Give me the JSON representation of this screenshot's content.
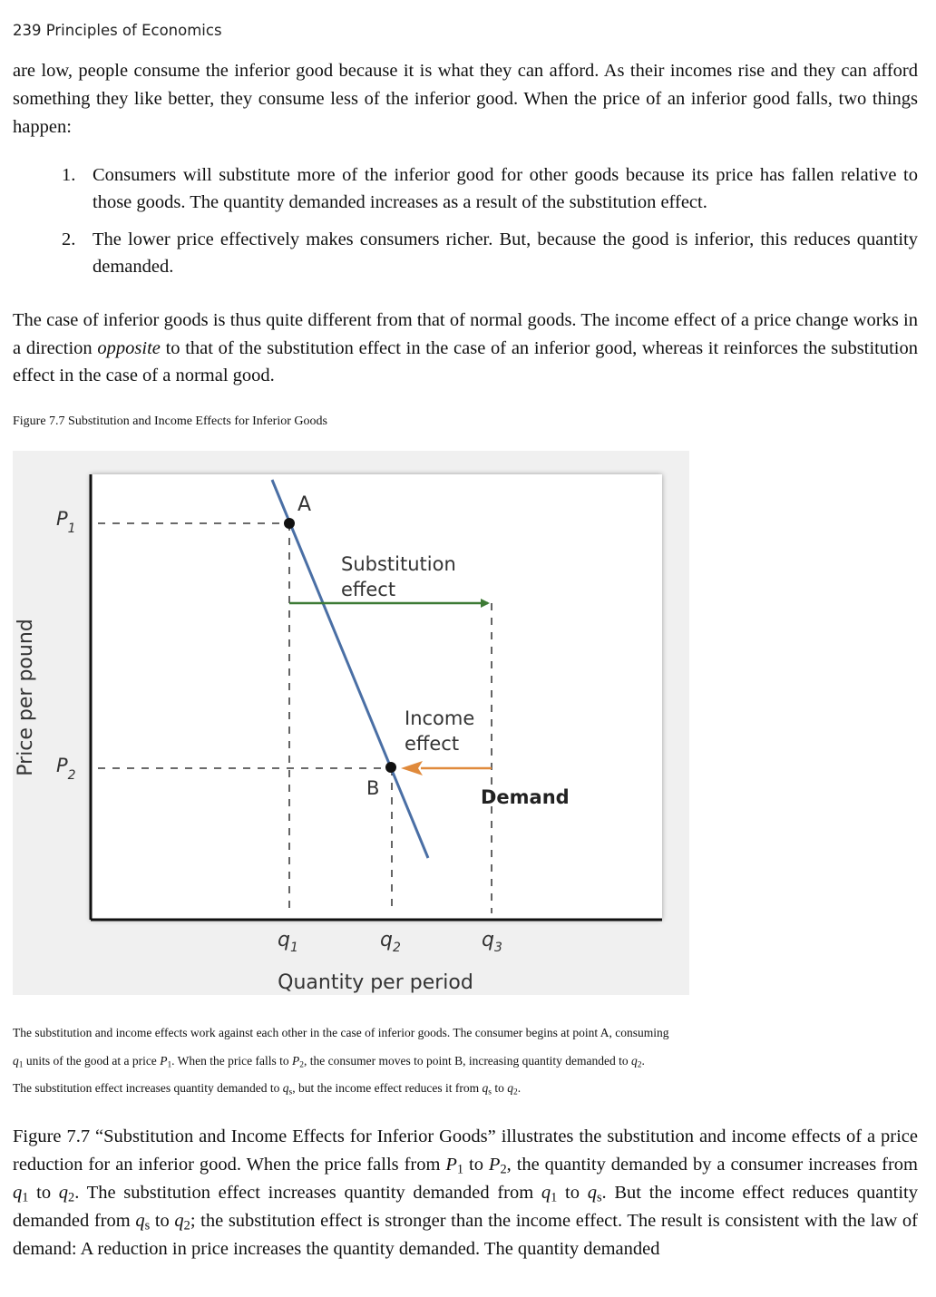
{
  "header": {
    "page_label": "239  Principles of Economics"
  },
  "para1": "are low, people consume the inferior good because it is what they can afford. As their incomes rise and they can afford something they like better, they consume less of the inferior good. When the price of an inferior good falls, two things happen:",
  "list": [
    {
      "num": "1.",
      "text": "Consumers will substitute more of the inferior good for other goods because its price has fallen relative to those goods. The quantity demanded increases as a result of the substitution effect."
    },
    {
      "num": "2.",
      "text": "The lower price effectively makes consumers richer. But, because the good is inferior, this reduces quantity demanded."
    }
  ],
  "para2": {
    "a": "The case of inferior goods is thus quite different from that of normal goods. The income effect of a price change works in a direction ",
    "em": "opposite",
    "b": " to that of the substitution effect in the case of an inferior good, whereas it reinforces the substitution effect in the case of a normal good."
  },
  "figure": {
    "title": "Figure 7.7 Substitution and Income Effects for Inferior Goods",
    "ylabel": "Price per pound",
    "xlabel": "Quantity per period",
    "p1": "P",
    "p1_sub": "1",
    "p2": "P",
    "p2_sub": "2",
    "q1": "q",
    "q1_sub": "1",
    "q2": "q",
    "q2_sub": "2",
    "q3": "q",
    "q3_sub": "3",
    "point_a": "A",
    "point_b": "B",
    "subst_line1": "Substitution",
    "subst_line2": "effect",
    "income_line1": "Income",
    "income_line2": "effect",
    "demand_label": "Demand",
    "colors": {
      "demand": "#4a6fa5",
      "substitution": "#3d7a35",
      "income": "#e08a3c"
    }
  },
  "caption": {
    "l1": "The substitution and income effects work against each other in the case of inferior goods. The consumer begins at point A, consuming",
    "l2_a": "q",
    "l2_a_sub": "1",
    "l2_b": " units of the good at a price ",
    "l2_c": "P",
    "l2_c_sub": "1",
    "l2_d": ". When the price falls to ",
    "l2_e": "P",
    "l2_e_sub": "2",
    "l2_f": ", the consumer moves to point B, increasing quantity demanded to ",
    "l2_g": "q",
    "l2_g_sub": "2",
    "l2_h": ".",
    "l3_a": "The substitution effect increases quantity demanded to ",
    "l3_b": "q",
    "l3_b_sub": "s",
    "l3_c": ", but the income effect reduces it from ",
    "l3_d": "q",
    "l3_d_sub": "s",
    "l3_e": " to ",
    "l3_f": "q",
    "l3_f_sub": "2",
    "l3_g": "."
  },
  "para3": {
    "t1": "Figure 7.7 “Substitution and Income Effects for Inferior Goods” illustrates the substitution and income effects of a price reduction for an inferior good. When the price falls from ",
    "P1": "P",
    "P1_sub": "1",
    "t2": " to ",
    "P2": "P",
    "P2_sub": "2",
    "t3": ", the quantity demanded by a consumer increases from ",
    "q1": "q",
    "q1_sub": "1",
    "t4": " to ",
    "q2": "q",
    "q2_sub": "2",
    "t5": ". The substitution effect increases quantity demanded from ",
    "q1b": "q",
    "q1b_sub": "1",
    "t6": " to ",
    "qs": "q",
    "qs_sub": "s",
    "t7": ". But the income effect reduces quantity demanded from ",
    "qs2": "q",
    "qs2_sub": "s",
    "t8": " to ",
    "q2b": "q",
    "q2b_sub": "2",
    "t9": "; the substitution effect is stronger than the income effect. The result is consistent with the law of demand: A reduction in price increases the quantity demanded. The quantity demanded"
  }
}
